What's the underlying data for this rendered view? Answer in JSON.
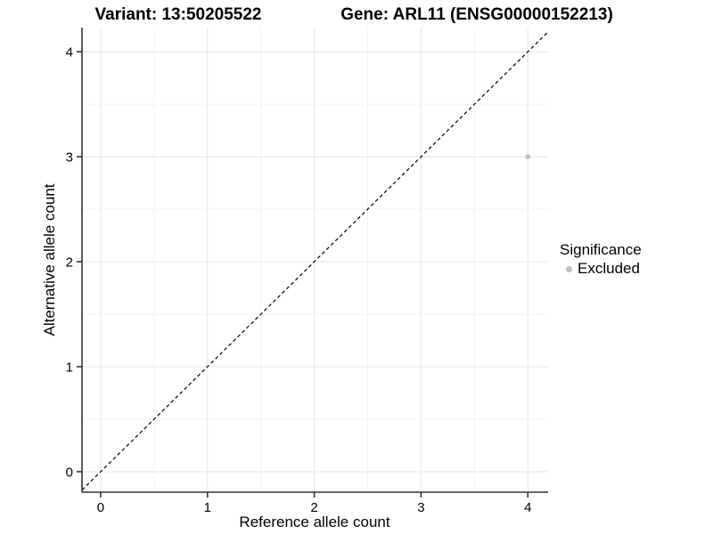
{
  "chart_data": {
    "type": "scatter",
    "title_left": "Variant: 13:50205522",
    "title_right": "Gene: ARL11 (ENSG00000152213)",
    "xlabel": "Reference allele count",
    "ylabel": "Alternative allele count",
    "x_ticks": [
      0,
      1,
      2,
      3,
      4
    ],
    "y_ticks": [
      0,
      1,
      2,
      3,
      4
    ],
    "xlim": [
      -0.175,
      4.19
    ],
    "ylim": [
      -0.195,
      4.23
    ],
    "grid": "major and minor gridlines, white background",
    "identity_line": {
      "equation": "y = x",
      "style": "dashed",
      "color": "#000000"
    },
    "points": [
      {
        "x": 4,
        "y": 3,
        "series": "Excluded",
        "color": "#bebebe",
        "radius": 2.8
      }
    ],
    "legend": {
      "title": "Significance",
      "position": "right",
      "entries": [
        {
          "label": "Excluded",
          "marker": "circle",
          "color": "#bebebe"
        }
      ]
    },
    "colors": {
      "grid_major": "#e9e9e9",
      "grid_minor": "#f3f3f3",
      "axis": "#333333",
      "point": "#bebebe",
      "text": "#000000"
    }
  }
}
